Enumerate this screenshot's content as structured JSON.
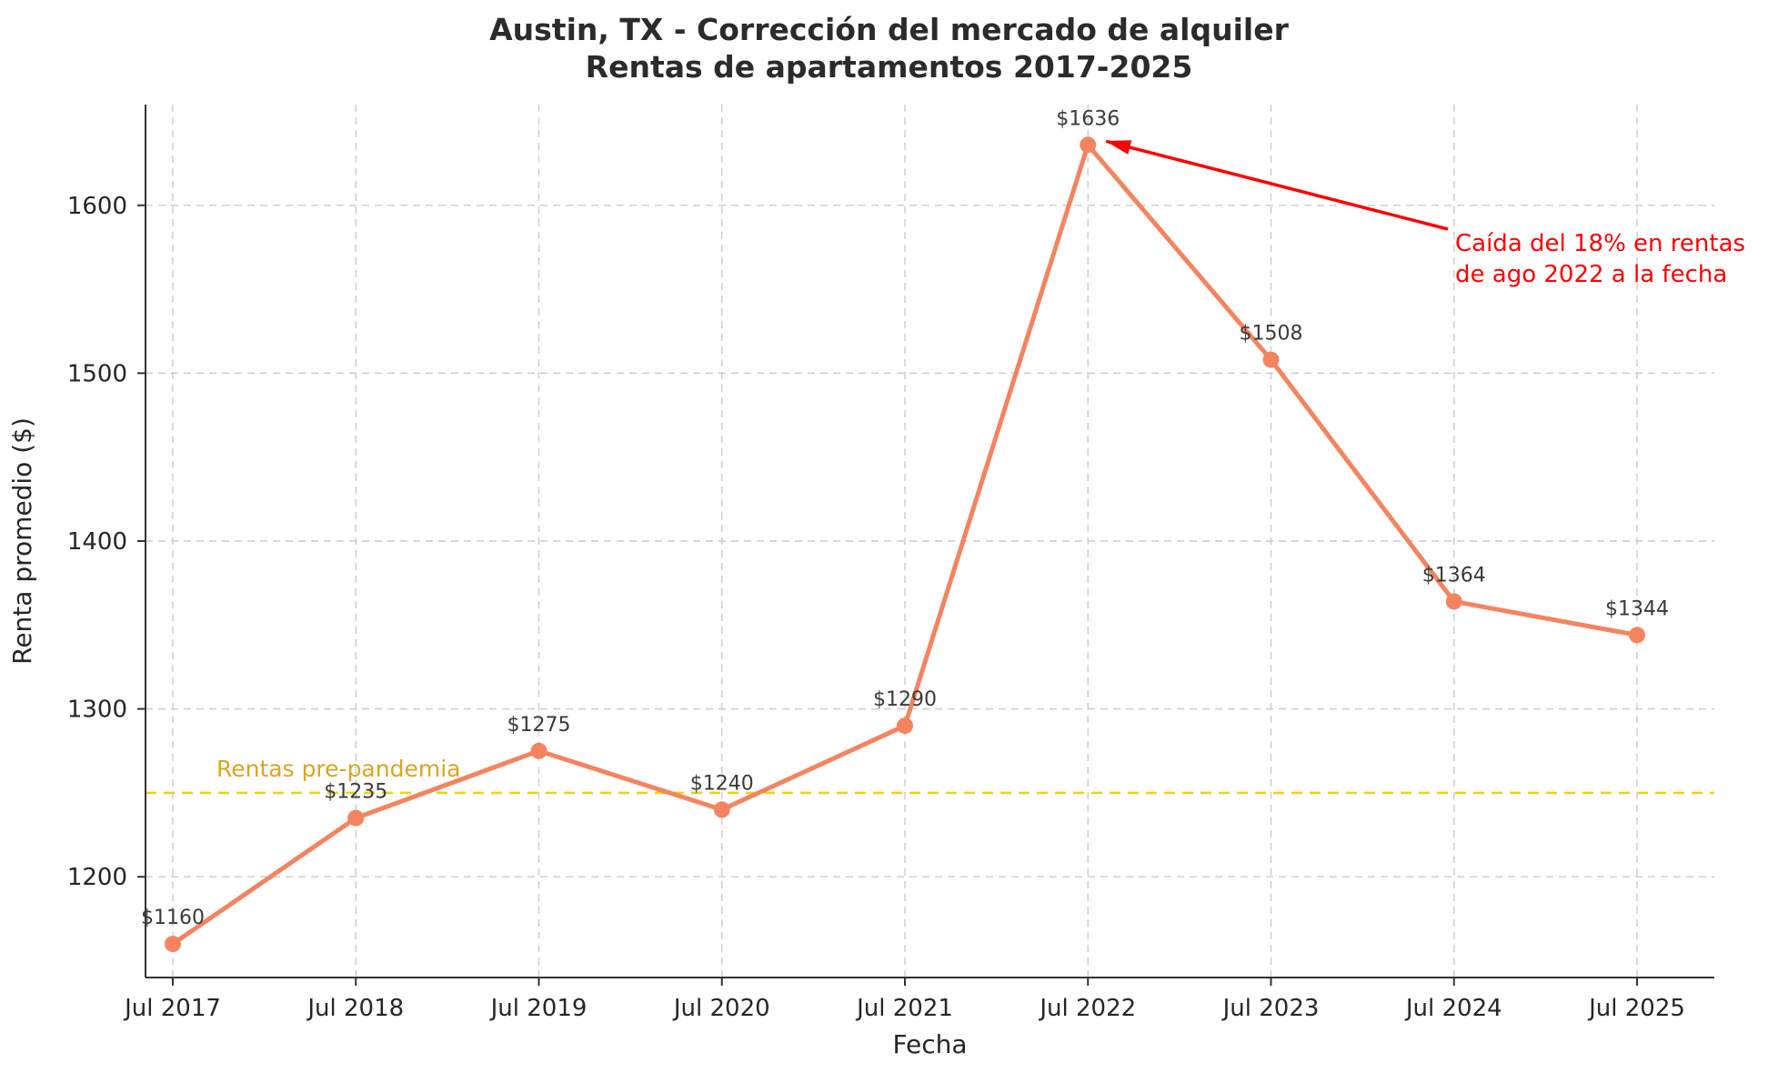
{
  "chart_data": {
    "type": "line",
    "title": "Austin, TX - Corrección del mercado de alquiler",
    "subtitle": "Rentas de apartamentos 2017-2025",
    "xlabel": "Fecha",
    "ylabel": "Renta promedio ($)",
    "categories": [
      "Jul 2017",
      "Jul 2018",
      "Jul 2019",
      "Jul 2020",
      "Jul 2021",
      "Jul 2022",
      "Jul 2023",
      "Jul 2024",
      "Jul 2025"
    ],
    "series": [
      {
        "name": "Renta promedio",
        "values": [
          1160,
          1235,
          1275,
          1240,
          1290,
          1636,
          1508,
          1364,
          1344
        ]
      }
    ],
    "point_labels": [
      "$1160",
      "$1235",
      "$1275",
      "$1240",
      "$1290",
      "$1636",
      "$1508",
      "$1364",
      "$1344"
    ],
    "y_ticks": [
      1200,
      1300,
      1400,
      1500,
      1600
    ],
    "ylim": [
      1140,
      1660
    ],
    "grid": true,
    "legend": "none",
    "reference_line": {
      "value": 1250,
      "label": "Rentas pre-pandemia"
    },
    "annotation": {
      "line1": "Caída del 18% en rentas",
      "line2": "de ago 2022 a la fecha",
      "target_category": "Jul 2022",
      "target_value": 1636
    },
    "colors": {
      "line": "#F4845F",
      "marker": "#F4845F",
      "reference_line": "#F0D020",
      "reference_label": "#DAA520",
      "annotation": "#FF0000",
      "grid": "#CCCCCC",
      "axis": "#333333",
      "tick_label": "#262626",
      "point_label": "#3A3A3A",
      "title": "#2B2B2B",
      "background": "#FFFFFF"
    }
  }
}
